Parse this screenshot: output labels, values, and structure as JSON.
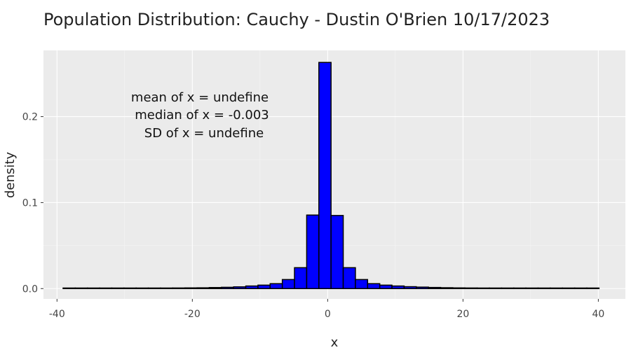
{
  "chart_data": {
    "type": "bar",
    "title": "Population Distribution: Cauchy -  Dustin O'Brien 10/17/2023",
    "xlabel": "x",
    "ylabel": "density",
    "xlim": [
      -42,
      44
    ],
    "ylim": [
      -0.012,
      0.277
    ],
    "grid": true,
    "background": "#ebebeb",
    "bar_color": "#0000ff",
    "bar_edge_color": "#000000",
    "x_ticks": [
      -40,
      -20,
      0,
      20,
      40
    ],
    "x_tick_labels": [
      "-40",
      "-20",
      "0",
      "20",
      "40"
    ],
    "y_ticks": [
      0.0,
      0.1,
      0.2
    ],
    "y_tick_labels": [
      "0.0",
      "0.1",
      "0.2"
    ],
    "bin_width": 1.8,
    "bin_centers": [
      -38.2,
      -36.4,
      -34.6,
      -32.8,
      -31.0,
      -29.2,
      -27.4,
      -25.6,
      -23.8,
      -22.0,
      -20.2,
      -18.4,
      -16.6,
      -14.8,
      -13.0,
      -11.2,
      -9.4,
      -7.6,
      -5.8,
      -4.0,
      -2.2,
      -0.4,
      1.4,
      3.2,
      5.0,
      6.8,
      8.6,
      10.4,
      12.2,
      14.0,
      15.8,
      17.6,
      19.4,
      21.2,
      23.0,
      24.8,
      26.6,
      28.4,
      30.2,
      32.0,
      33.8,
      35.6,
      37.4,
      39.2
    ],
    "values": [
      0.0002,
      0.0002,
      0.0002,
      0.0003,
      0.0003,
      0.0004,
      0.0004,
      0.0005,
      0.0006,
      0.0007,
      0.0008,
      0.0009,
      0.0012,
      0.0015,
      0.002,
      0.003,
      0.004,
      0.0057,
      0.0105,
      0.0243,
      0.0855,
      0.263,
      0.085,
      0.0243,
      0.0105,
      0.0057,
      0.004,
      0.003,
      0.0022,
      0.0017,
      0.0013,
      0.001,
      0.0008,
      0.0007,
      0.0006,
      0.0005,
      0.0004,
      0.0004,
      0.0003,
      0.0003,
      0.0003,
      0.0002,
      0.0002,
      0.0002
    ],
    "annotations": [
      "mean of x = undefine",
      "median of x = -0.003",
      "SD of x = undefine"
    ]
  }
}
